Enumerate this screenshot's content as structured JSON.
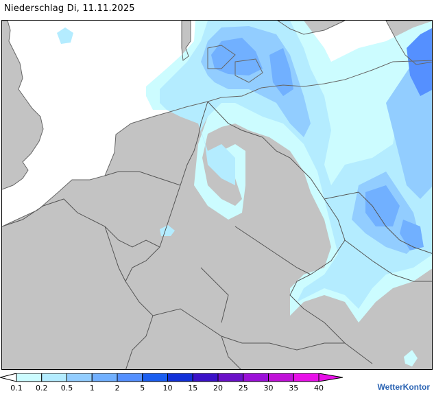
{
  "title": "Niederschlag Di, 11.11.2025",
  "legend": {
    "ticks": [
      "0.1",
      "0.2",
      "0.5",
      "1",
      "2",
      "5",
      "10",
      "15",
      "20",
      "25",
      "30",
      "35",
      "40"
    ],
    "colors": [
      "#ccfcff",
      "#b4ecff",
      "#92cdff",
      "#71b0ff",
      "#5590ff",
      "#1b5ef0",
      "#1230d8",
      "#3b12c8",
      "#6a10c8",
      "#9b10d8",
      "#c010d8",
      "#e810e8"
    ]
  },
  "brand": "WetterKontor",
  "map": {
    "land_color": "#c3c3c3",
    "sea_color": "#ffffff",
    "precip_colors": [
      "#ccfcff",
      "#b4ecff",
      "#92cdff",
      "#71b0ff",
      "#5590ff"
    ]
  }
}
